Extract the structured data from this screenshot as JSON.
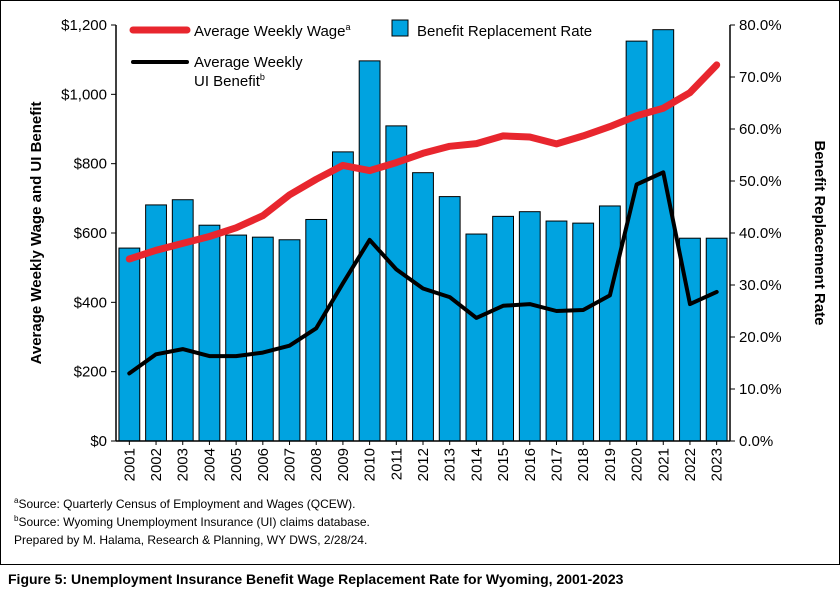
{
  "chart_data": {
    "type": "bar+line",
    "categories": [
      "2001",
      "2002",
      "2003",
      "2004",
      "2005",
      "2006",
      "2007",
      "2008",
      "2009",
      "2010",
      "2011",
      "2012",
      "2013",
      "2014",
      "2015",
      "2016",
      "2017",
      "2018",
      "2019",
      "2020",
      "2021",
      "2022",
      "2023"
    ],
    "bars": {
      "name": "Benefit Replacement Rate",
      "color": "#00A3E0",
      "axis": "right",
      "values": [
        37.1,
        45.4,
        46.4,
        41.5,
        39.6,
        39.2,
        38.7,
        42.6,
        55.6,
        73.1,
        60.6,
        51.6,
        47.0,
        39.8,
        43.2,
        44.1,
        42.3,
        41.9,
        45.2,
        76.9,
        79.1,
        39.0,
        39.0
      ]
    },
    "series": [
      {
        "name": "Average Weekly Wage",
        "superscript": "a",
        "color": "#E8262E",
        "axis": "left",
        "values": [
          525,
          550,
          570,
          590,
          615,
          650,
          710,
          755,
          795,
          780,
          803,
          830,
          850,
          858,
          880,
          877,
          857,
          880,
          907,
          938,
          960,
          1005,
          1085
        ]
      },
      {
        "name": "Average Weekly UI Benefit",
        "name_line1": "Average Weekly",
        "name_line2": "UI Benefit",
        "superscript": "b",
        "color": "#000000",
        "axis": "left",
        "values": [
          195,
          250,
          265,
          245,
          245,
          255,
          275,
          325,
          455,
          580,
          495,
          440,
          415,
          355,
          390,
          395,
          375,
          378,
          420,
          740,
          775,
          395,
          430
        ]
      }
    ],
    "left_axis": {
      "label": "Average Weekly Wage and UI Benefit",
      "min": 0,
      "max": 1200,
      "step": 200,
      "ticks": [
        "$0",
        "$200",
        "$400",
        "$600",
        "$800",
        "$1,000",
        "$1,200"
      ]
    },
    "right_axis": {
      "label": "Benefit Replacement Rate",
      "min": 0,
      "max": 80,
      "step": 10,
      "ticks": [
        "0.0%",
        "10.0%",
        "20.0%",
        "30.0%",
        "40.0%",
        "50.0%",
        "60.0%",
        "70.0%",
        "80.0%"
      ]
    },
    "legend_placement": "top-left",
    "grid": false
  },
  "notes": {
    "source_a_mark": "a",
    "source_a": "Source: Quarterly Census of Employment and Wages (QCEW).",
    "source_b_mark": "b",
    "source_b": "Source: Wyoming Unemployment Insurance (UI) claims database.",
    "prepared": "Prepared by M. Halama, Research & Planning, WY DWS, 2/28/24."
  },
  "caption": "Figure 5: Unemployment Insurance Benefit Wage Replacement Rate for Wyoming, 2001-2023"
}
